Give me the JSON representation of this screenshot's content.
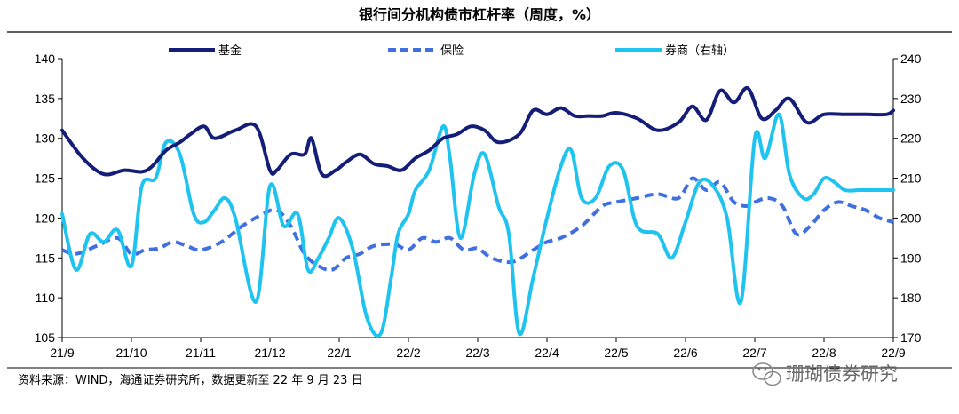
{
  "chart_data": {
    "type": "line",
    "title": "银行间分机构债市杠杆率（周度，%）",
    "x_ticks": [
      "21/9",
      "21/10",
      "21/11",
      "21/12",
      "22/1",
      "22/2",
      "22/3",
      "22/4",
      "22/5",
      "22/6",
      "22/7",
      "22/8",
      "22/9"
    ],
    "y_left": {
      "min": 105,
      "max": 140,
      "step": 5
    },
    "y_right": {
      "min": 170,
      "max": 240,
      "step": 10
    },
    "legend_position": "top",
    "grid": false,
    "series": [
      {
        "name": "基金",
        "axis": "left",
        "color": "#141E78",
        "style": "solid",
        "x": [
          0,
          0.3,
          0.6,
          0.9,
          1.15,
          1.3,
          1.5,
          1.7,
          1.85,
          2.05,
          2.2,
          2.5,
          2.8,
          3.0,
          3.1,
          3.3,
          3.5,
          3.6,
          3.75,
          3.95,
          4.1,
          4.3,
          4.5,
          4.7,
          4.9,
          5.1,
          5.3,
          5.5,
          5.7,
          5.9,
          6.1,
          6.3,
          6.6,
          6.8,
          7.0,
          7.2,
          7.4,
          7.6,
          7.8,
          8.0,
          8.3,
          8.6,
          8.9,
          9.1,
          9.3,
          9.5,
          9.7,
          9.9,
          10.1,
          10.3,
          10.5,
          10.75,
          11.0,
          11.3,
          11.6,
          11.9,
          12.0
        ],
        "values": [
          131,
          127.5,
          125.5,
          126,
          125.8,
          126.5,
          128.5,
          129.5,
          130.5,
          131.5,
          130,
          131,
          131.5,
          126,
          126,
          128,
          128,
          130,
          125.5,
          126,
          127,
          128,
          126.8,
          126.5,
          126,
          127.5,
          128.5,
          130,
          130.5,
          131.5,
          131,
          129.5,
          130.5,
          133.5,
          133,
          133.8,
          132.8,
          132.8,
          132.8,
          133.2,
          132.5,
          131,
          132,
          134,
          132.3,
          136,
          134.5,
          136.3,
          132.5,
          133.5,
          135,
          132,
          133,
          133,
          133,
          133,
          133.5
        ]
      },
      {
        "name": "保险",
        "axis": "left",
        "color": "#3F6FE0",
        "style": "dashed",
        "x": [
          0,
          0.2,
          0.5,
          0.8,
          1.0,
          1.2,
          1.4,
          1.6,
          1.8,
          2.0,
          2.3,
          2.6,
          2.9,
          3.1,
          3.3,
          3.5,
          3.7,
          3.9,
          4.1,
          4.3,
          4.5,
          4.8,
          5.0,
          5.2,
          5.4,
          5.6,
          5.8,
          6.0,
          6.2,
          6.5,
          6.8,
          7.0,
          7.2,
          7.5,
          7.8,
          8.0,
          8.3,
          8.6,
          8.9,
          9.1,
          9.3,
          9.5,
          9.7,
          9.9,
          10.0,
          10.2,
          10.4,
          10.6,
          10.8,
          11.0,
          11.2,
          11.4,
          11.6,
          11.8,
          12.0
        ],
        "values": [
          116,
          115.5,
          116.5,
          117.5,
          115.5,
          116,
          116.2,
          117,
          116.5,
          116,
          117,
          119,
          120.5,
          121,
          119,
          115.5,
          114,
          113.5,
          115,
          115.5,
          116.5,
          116.7,
          116,
          117.5,
          117,
          117.5,
          116,
          116.2,
          115,
          114.5,
          116,
          117,
          117.5,
          119,
          121.5,
          122,
          122.5,
          123,
          122.5,
          125,
          123.5,
          124.5,
          122,
          121.5,
          122,
          122.5,
          121.5,
          118,
          119,
          121,
          122,
          121.5,
          121,
          120,
          119.5
        ]
      },
      {
        "name": "券商（右轴）",
        "axis": "right",
        "color": "#1EC3F0",
        "style": "solid",
        "x": [
          0,
          0.2,
          0.4,
          0.6,
          0.8,
          1.0,
          1.15,
          1.35,
          1.5,
          1.7,
          1.9,
          2.05,
          2.2,
          2.35,
          2.5,
          2.8,
          3.0,
          3.2,
          3.4,
          3.55,
          3.7,
          3.85,
          4.0,
          4.2,
          4.4,
          4.6,
          4.75,
          4.85,
          5.0,
          5.1,
          5.3,
          5.5,
          5.6,
          5.75,
          5.95,
          6.1,
          6.3,
          6.45,
          6.6,
          6.8,
          7.0,
          7.2,
          7.35,
          7.5,
          7.7,
          7.9,
          8.1,
          8.3,
          8.6,
          8.8,
          9.0,
          9.2,
          9.4,
          9.6,
          9.8,
          10.0,
          10.15,
          10.35,
          10.5,
          10.7,
          10.85,
          11.0,
          11.15,
          11.3,
          11.5,
          11.7,
          11.85,
          12.0
        ],
        "values": [
          201,
          187,
          196,
          194,
          197,
          188,
          208,
          210,
          219,
          216,
          201,
          199,
          202,
          205,
          200,
          179,
          208,
          198,
          201,
          187,
          190,
          195,
          200,
          192,
          175,
          171,
          185,
          196,
          201,
          207,
          212,
          223,
          215,
          195,
          211,
          216,
          203,
          196,
          171,
          185,
          200,
          213,
          217,
          205,
          205,
          213,
          212,
          198,
          196,
          190,
          199,
          209,
          208,
          200,
          179,
          220,
          215,
          226,
          211,
          205,
          206,
          210,
          209,
          207,
          207,
          207,
          207,
          207
        ]
      }
    ]
  },
  "source": "资料来源：WIND，海通证券研究所，数据更新至 22 年 9 月 23 日",
  "watermark": "珊瑚债券研究"
}
